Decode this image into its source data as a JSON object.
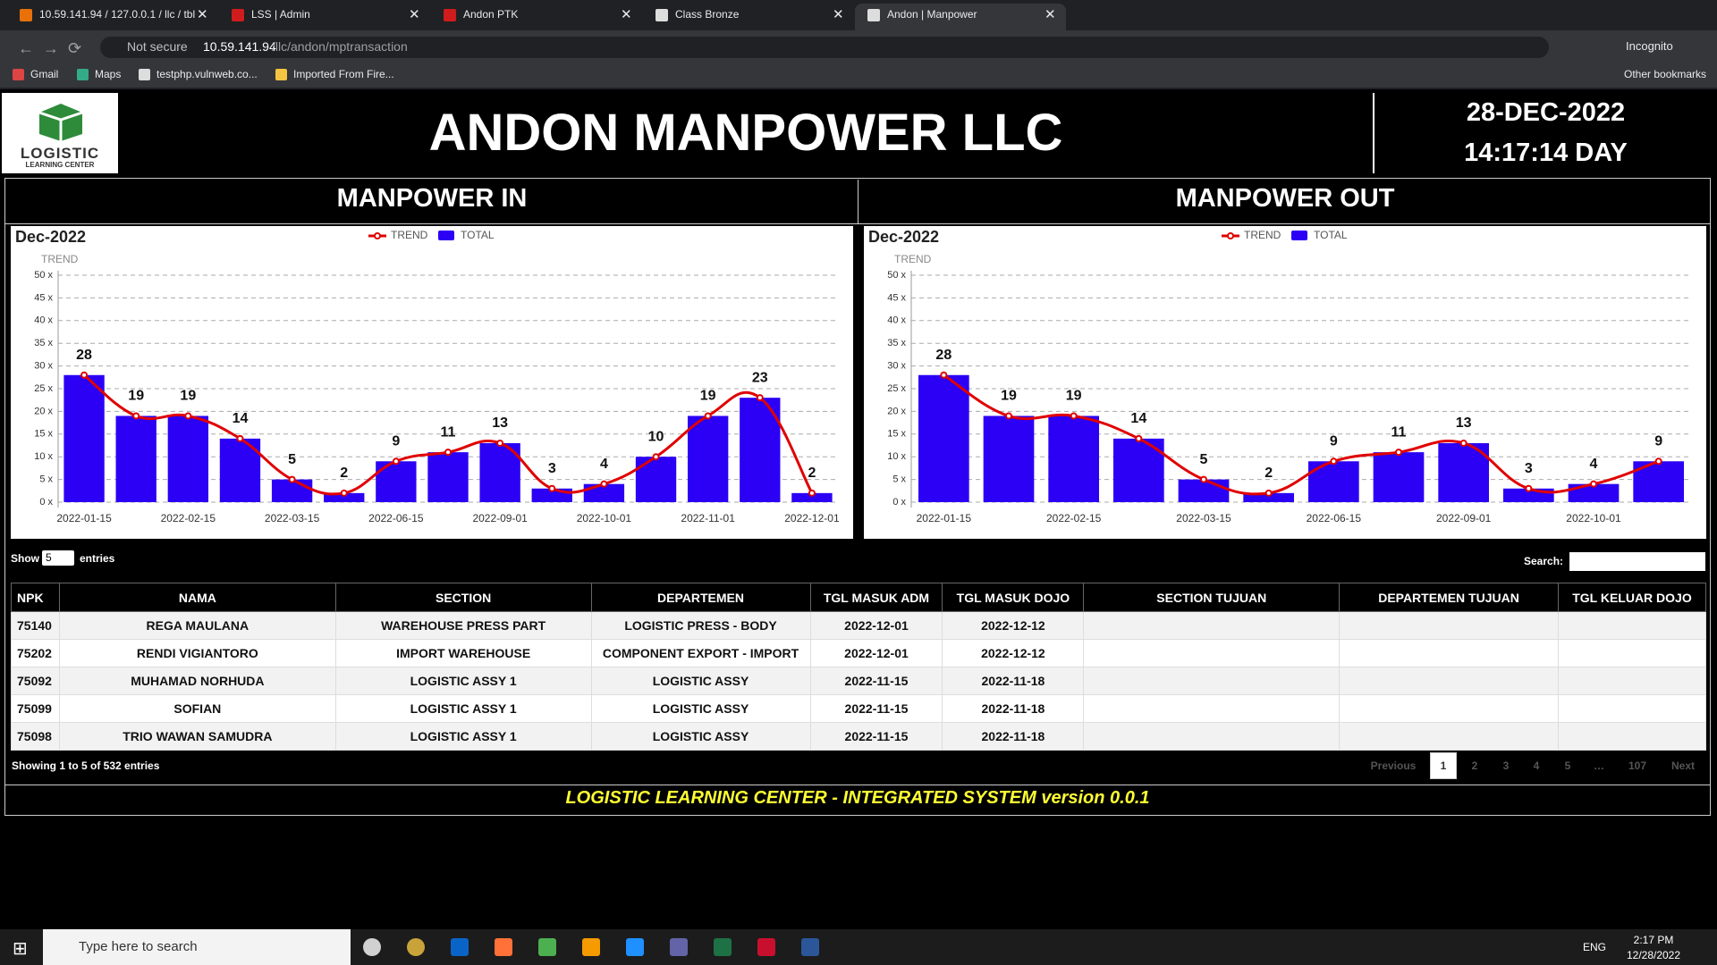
{
  "browser": {
    "tabs": [
      "10.59.141.94 / 127.0.0.1 / llc / tbl",
      "LSS | Admin",
      "Andon PTK",
      "Class Bronze",
      "Andon | Manpower"
    ],
    "not_secure": "Not secure",
    "url_host": "10.59.141.94",
    "url_path": "/llc/andon/mptransaction",
    "profile": "Incognito",
    "bookmarks": [
      "Gmail",
      "Maps",
      "testphp.vulnweb.co...",
      "Imported From Fire..."
    ],
    "other_bookmarks": "Other bookmarks"
  },
  "header": {
    "logo_title": "LOGISTIC",
    "logo_subtitle": "LEARNING CENTER",
    "title": "ANDON MANPOWER LLC",
    "date": "28-DEC-2022",
    "time": "14:17:14 DAY"
  },
  "charts": [
    {
      "heading": "MANPOWER IN",
      "type": "bar",
      "title": "Dec-2022",
      "y_label": "TREND",
      "categories": [
        "2022-01-15",
        null,
        "2022-02-15",
        null,
        "2022-03-15",
        null,
        "2022-06-15",
        null,
        "2022-09-01",
        null,
        "2022-10-01",
        null,
        "2022-11-01",
        null,
        "2022-12-01"
      ],
      "series": [
        {
          "name": "TREND",
          "type": "line",
          "color": "#e00000",
          "values": [
            28,
            19,
            19,
            14,
            5,
            2,
            9,
            11,
            13,
            3,
            4,
            10,
            19,
            23,
            2
          ]
        },
        {
          "name": "TOTAL",
          "type": "bar",
          "color": "#2b00f5",
          "values": [
            28,
            19,
            19,
            14,
            5,
            2,
            9,
            11,
            13,
            3,
            4,
            10,
            19,
            23,
            2
          ]
        }
      ],
      "ylim": [
        0,
        50
      ],
      "yticks": [
        {
          "value": 0,
          "label": "0 x"
        },
        {
          "value": 5,
          "label": "5 x"
        },
        {
          "value": 10,
          "label": "10 x"
        },
        {
          "value": 15,
          "label": "15 x"
        },
        {
          "value": 20,
          "label": "20 x"
        },
        {
          "value": 25,
          "label": "25 x"
        },
        {
          "value": 30,
          "label": "30 x"
        },
        {
          "value": 35,
          "label": "35 x"
        },
        {
          "value": 40,
          "label": "40 x"
        },
        {
          "value": 45,
          "label": "45 x"
        },
        {
          "value": 50,
          "label": "50 x"
        }
      ],
      "grid": true,
      "legend": "top"
    },
    {
      "heading": "MANPOWER OUT",
      "type": "bar",
      "title": "Dec-2022",
      "y_label": "TREND",
      "categories": [
        "2022-01-15",
        null,
        "2022-02-15",
        null,
        "2022-03-15",
        null,
        "2022-06-15",
        null,
        "2022-09-01",
        null,
        "2022-10-01",
        null
      ],
      "series": [
        {
          "name": "TREND",
          "type": "line",
          "color": "#e00000",
          "values": [
            28,
            19,
            19,
            14,
            5,
            2,
            9,
            11,
            13,
            3,
            4,
            9
          ]
        },
        {
          "name": "TOTAL",
          "type": "bar",
          "color": "#2b00f5",
          "values": [
            28,
            19,
            19,
            14,
            5,
            2,
            9,
            11,
            13,
            3,
            4,
            9
          ]
        }
      ],
      "ylim": [
        0,
        50
      ],
      "yticks": [
        {
          "value": 0,
          "label": "0 x"
        },
        {
          "value": 5,
          "label": "5 x"
        },
        {
          "value": 10,
          "label": "10 x"
        },
        {
          "value": 15,
          "label": "15 x"
        },
        {
          "value": 20,
          "label": "20 x"
        },
        {
          "value": 25,
          "label": "25 x"
        },
        {
          "value": 30,
          "label": "30 x"
        },
        {
          "value": 35,
          "label": "35 x"
        },
        {
          "value": 40,
          "label": "40 x"
        },
        {
          "value": 45,
          "label": "45 x"
        },
        {
          "value": 50,
          "label": "50 x"
        }
      ],
      "grid": true,
      "legend": "top"
    }
  ],
  "table": {
    "show": "Show",
    "page_length": "5",
    "entries": "entries",
    "search": "Search:",
    "columns": [
      "NPK",
      "NAMA",
      "SECTION",
      "DEPARTEMEN",
      "TGL MASUK ADM",
      "TGL MASUK DOJO",
      "SECTION TUJUAN",
      "DEPARTEMEN TUJUAN",
      "TGL KELUAR DOJO"
    ],
    "rows": [
      [
        "75140",
        "REGA MAULANA",
        "WAREHOUSE PRESS PART",
        "LOGISTIC PRESS - BODY",
        "2022-12-01",
        "2022-12-12"
      ],
      [
        "75202",
        "RENDI VIGIANTORO",
        "IMPORT WAREHOUSE",
        "COMPONENT EXPORT - IMPORT",
        "2022-12-01",
        "2022-12-12"
      ],
      [
        "75092",
        "MUHAMAD NORHUDA",
        "LOGISTIC ASSY 1",
        "LOGISTIC ASSY",
        "2022-11-15",
        "2022-11-18"
      ],
      [
        "75099",
        "SOFIAN",
        "LOGISTIC ASSY 1",
        "LOGISTIC ASSY",
        "2022-11-15",
        "2022-11-18"
      ],
      [
        "75098",
        "TRIO WAWAN SAMUDRA",
        "LOGISTIC ASSY 1",
        "LOGISTIC ASSY",
        "2022-11-15",
        "2022-11-18"
      ]
    ],
    "info": "Showing 1 to 5 of 532 entries",
    "pagination": [
      "Previous",
      "1",
      "2",
      "3",
      "4",
      "5",
      "…",
      "107",
      "Next"
    ]
  },
  "footer": "LOGISTIC LEARNING CENTER - INTEGRATED SYSTEM version 0.0.1",
  "taskbar": {
    "search": "Type here to search",
    "lang": "ENG",
    "time": "2:17 PM",
    "date": "12/28/2022"
  }
}
